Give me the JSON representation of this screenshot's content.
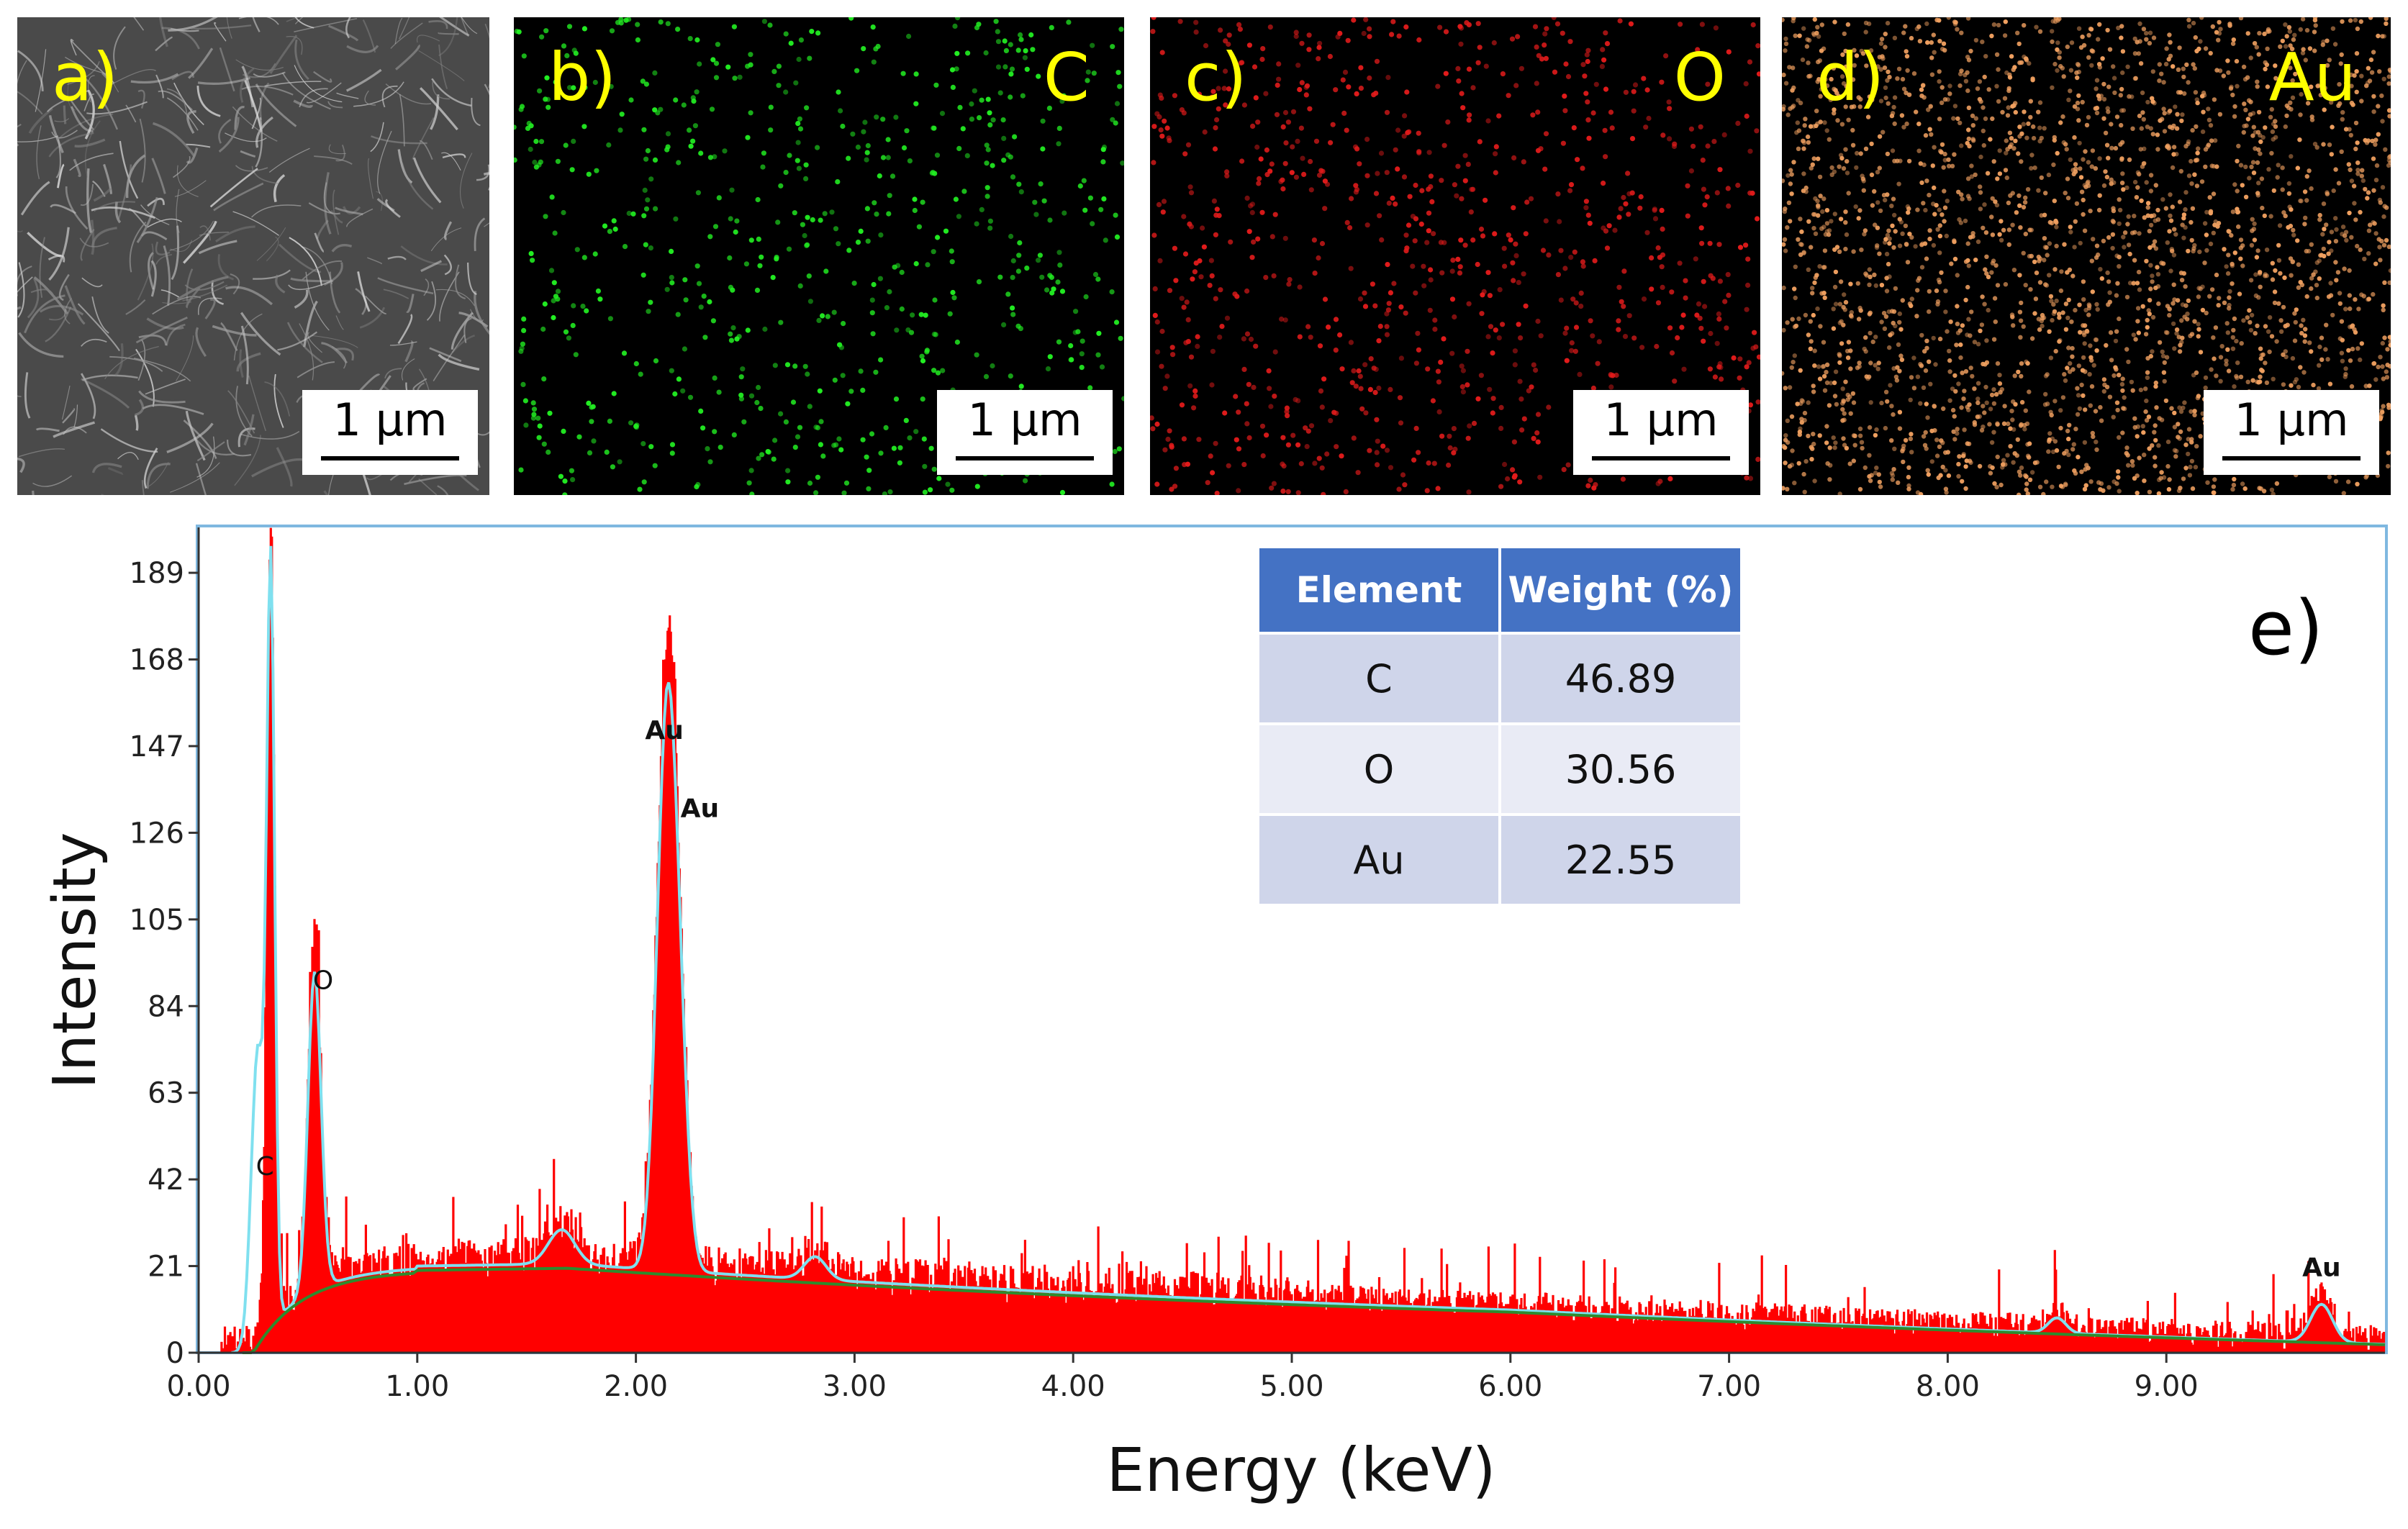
{
  "panels": [
    {
      "label": "a)",
      "element": "",
      "scale": "1 μm",
      "dot_color": "#d8d8d8"
    },
    {
      "label": "b)",
      "element": "C",
      "scale": "1 μm",
      "dot_color": "#22ee22"
    },
    {
      "label": "c)",
      "element": "O",
      "scale": "1 μm",
      "dot_color": "#e21b1b"
    },
    {
      "label": "d)",
      "element": "Au",
      "scale": "1 μm",
      "dot_color": "#f0a060"
    }
  ],
  "label_color": "#ffff00",
  "table": {
    "headers": [
      "Element",
      "Weight (%)"
    ],
    "rows": [
      {
        "element": "C",
        "weight": "46.89"
      },
      {
        "element": "O",
        "weight": "30.56"
      },
      {
        "element": "Au",
        "weight": "22.55"
      }
    ]
  },
  "panel_e_label": "e)",
  "chart_data": {
    "type": "bar",
    "title": "",
    "xlabel": "Energy (keV)",
    "ylabel": "Intensity",
    "xlim": [
      0,
      10
    ],
    "ylim": [
      0,
      200
    ],
    "xticks": [
      "0.00",
      "1.00",
      "2.00",
      "3.00",
      "4.00",
      "5.00",
      "6.00",
      "7.00",
      "8.00",
      "9.00"
    ],
    "yticks": [
      "0",
      "21",
      "42",
      "63",
      "84",
      "105",
      "126",
      "147",
      "168",
      "189"
    ],
    "peaks": [
      {
        "label": "C",
        "energy": 0.33,
        "intensity": 200
      },
      {
        "label": "O",
        "energy": 0.53,
        "intensity": 84
      },
      {
        "label": "Au",
        "energy": 2.13,
        "intensity": 160
      },
      {
        "label": "Au",
        "energy": 2.2,
        "intensity": 125
      },
      {
        "label": "Au",
        "energy": 9.71,
        "intensity": 12
      }
    ],
    "series": [
      {
        "name": "spectrum",
        "color": "#ff0000"
      },
      {
        "name": "fit",
        "color": "#7fe0ef"
      },
      {
        "name": "background",
        "color": "#2e8b2e"
      }
    ]
  }
}
